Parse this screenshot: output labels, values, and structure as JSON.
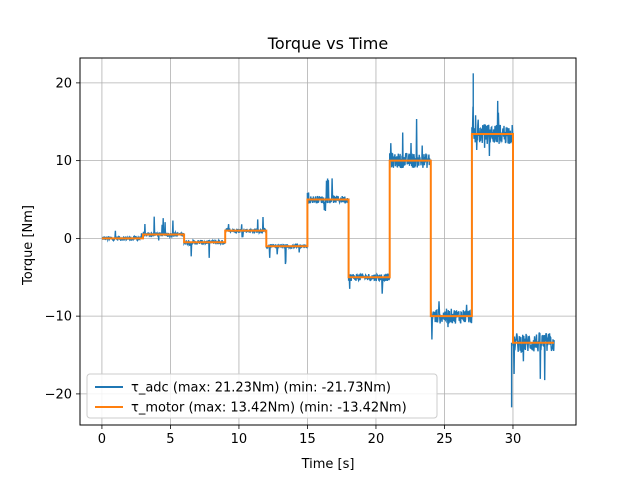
{
  "chart_data": {
    "type": "line",
    "title": "Torque vs Time",
    "xlabel": "Time [s]",
    "ylabel": "Torque [Nm]",
    "xlim": [
      -1.6,
      34.6
    ],
    "ylim": [
      -24.0,
      23.2
    ],
    "xticks": [
      0,
      5,
      10,
      15,
      20,
      25,
      30
    ],
    "yticks": [
      -20,
      -10,
      0,
      10,
      20
    ],
    "grid": true,
    "legend_position": "lower-left",
    "series": [
      {
        "name": "τ_adc (max: 21.23Nm) (min: -21.73Nm)",
        "color": "#1f77b4",
        "setpoints": [
          {
            "t_start": 0,
            "t_end": 3,
            "value": 0
          },
          {
            "t_start": 3,
            "t_end": 6,
            "value": 0.5
          },
          {
            "t_start": 6,
            "t_end": 9,
            "value": -0.5
          },
          {
            "t_start": 9,
            "t_end": 12,
            "value": 1
          },
          {
            "t_start": 12,
            "t_end": 15,
            "value": -1
          },
          {
            "t_start": 15,
            "t_end": 18,
            "value": 5
          },
          {
            "t_start": 18,
            "t_end": 21,
            "value": -5
          },
          {
            "t_start": 21,
            "t_end": 24,
            "value": 10
          },
          {
            "t_start": 24,
            "t_end": 27,
            "value": -10
          },
          {
            "t_start": 27,
            "t_end": 30,
            "value": 13.42
          },
          {
            "t_start": 30,
            "t_end": 33,
            "value": -13.42
          }
        ],
        "max": 21.23,
        "min": -21.73
      },
      {
        "name": "τ_motor (max: 13.42Nm) (min: -13.42Nm)",
        "color": "#ff7f0e",
        "x": [
          0,
          3,
          3,
          6,
          6,
          9,
          9,
          12,
          12,
          15,
          15,
          18,
          18,
          21,
          21,
          24,
          24,
          27,
          27,
          30,
          30,
          33
        ],
        "y": [
          0,
          0,
          0.5,
          0.5,
          -0.5,
          -0.5,
          1,
          1,
          -1,
          -1,
          5,
          5,
          -5,
          -5,
          10,
          10,
          -10,
          -10,
          13.42,
          13.42,
          -13.42,
          -13.42
        ]
      }
    ]
  }
}
